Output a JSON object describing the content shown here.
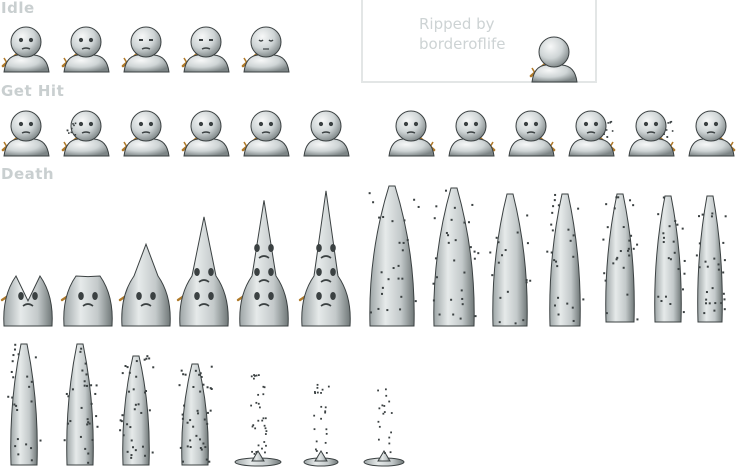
{
  "sections": {
    "idle": {
      "label": "Idle",
      "frame_count": 5
    },
    "get_hit": {
      "label": "Get Hit",
      "frame_count": 12
    },
    "death": {
      "label": "Death",
      "frame_count": 20
    }
  },
  "credit": {
    "line1": "Ripped by",
    "line2": "borderoflife"
  },
  "colors": {
    "label_text": "#c9cfd0",
    "credit_box_border": "#e3e6e6",
    "snow_light": "#f7f8f8",
    "snow_shadow": "#7d8586",
    "outline": "#3b4142",
    "twig": "#b07a2a"
  }
}
